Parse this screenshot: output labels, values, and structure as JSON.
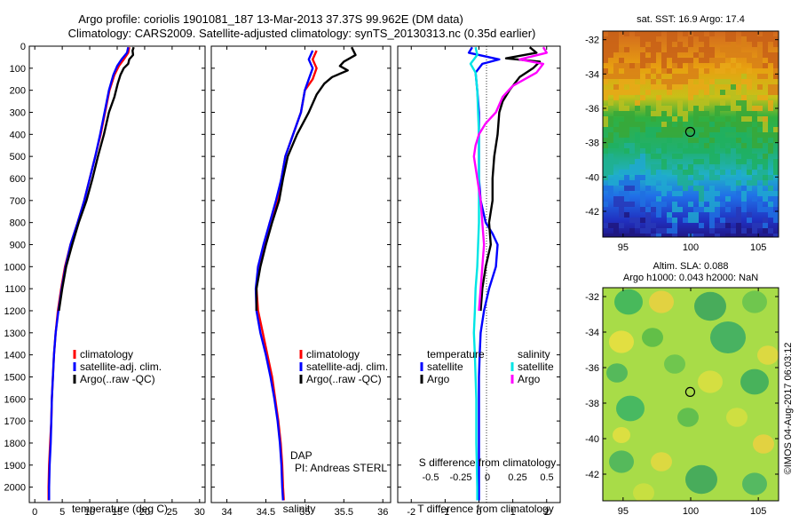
{
  "header": {
    "line1": "Argo profile: coriolis 1901081_187 13-Mar-2013 37.37S 99.962E (DM data)",
    "line2": "Climatology: CARS2009. Satellite-adjusted climatology: synTS_20130313.nc (0.35d earlier)"
  },
  "colors": {
    "climatology": "#ff0000",
    "satellite": "#0000ff",
    "argo": "#000000",
    "argo_s": "#ff00ff",
    "satellite_s": "#00e5e5"
  },
  "chart_data": [
    {
      "type": "line",
      "id": "temperature",
      "xlabel": "temperature (deg C)",
      "xlim": [
        -1,
        31
      ],
      "ylim": [
        0,
        2070
      ],
      "xticks": [
        0,
        5,
        10,
        15,
        20,
        25,
        30
      ],
      "yticks": [
        0,
        100,
        200,
        300,
        400,
        500,
        600,
        700,
        800,
        900,
        1000,
        1100,
        1200,
        1300,
        1400,
        1500,
        1600,
        1700,
        1800,
        1900,
        2000
      ],
      "legend": [
        "climatology",
        "satellite-adj. clim.",
        "Argo(..raw -QC)"
      ],
      "series": [
        {
          "name": "climatology",
          "color": "climatology",
          "points": [
            [
              17.2,
              5
            ],
            [
              17.0,
              30
            ],
            [
              16.2,
              60
            ],
            [
              15.3,
              90
            ],
            [
              14.5,
              130
            ],
            [
              13.6,
              200
            ],
            [
              12.8,
              300
            ],
            [
              12.0,
              400
            ],
            [
              11.0,
              500
            ],
            [
              10.0,
              600
            ],
            [
              9.0,
              700
            ],
            [
              7.8,
              800
            ],
            [
              6.5,
              900
            ],
            [
              5.5,
              1000
            ],
            [
              4.8,
              1100
            ],
            [
              4.2,
              1200
            ],
            [
              3.8,
              1300
            ],
            [
              3.5,
              1400
            ],
            [
              3.3,
              1500
            ],
            [
              3.1,
              1600
            ],
            [
              3.0,
              1700
            ],
            [
              2.8,
              1800
            ],
            [
              2.6,
              1900
            ],
            [
              2.5,
              2000
            ],
            [
              2.5,
              2060
            ]
          ]
        },
        {
          "name": "satellite-adj. clim.",
          "color": "satellite",
          "points": [
            [
              17.0,
              5
            ],
            [
              16.8,
              30
            ],
            [
              15.8,
              60
            ],
            [
              15.0,
              90
            ],
            [
              14.3,
              130
            ],
            [
              13.5,
              200
            ],
            [
              12.7,
              300
            ],
            [
              11.9,
              400
            ],
            [
              11.0,
              500
            ],
            [
              10.0,
              600
            ],
            [
              9.0,
              700
            ],
            [
              7.8,
              800
            ],
            [
              6.5,
              900
            ],
            [
              5.6,
              1000
            ],
            [
              4.9,
              1100
            ],
            [
              4.3,
              1200
            ],
            [
              3.8,
              1300
            ],
            [
              3.5,
              1400
            ],
            [
              3.3,
              1500
            ],
            [
              3.1,
              1600
            ],
            [
              3.0,
              1700
            ],
            [
              2.9,
              1800
            ],
            [
              2.7,
              1900
            ],
            [
              2.6,
              2000
            ],
            [
              2.6,
              2060
            ]
          ]
        },
        {
          "name": "Argo(..raw -QC)",
          "color": "argo",
          "points": [
            [
              18.0,
              5
            ],
            [
              17.8,
              20
            ],
            [
              17.9,
              40
            ],
            [
              17.2,
              60
            ],
            [
              17.0,
              80
            ],
            [
              16.2,
              100
            ],
            [
              15.6,
              130
            ],
            [
              15.1,
              170
            ],
            [
              14.5,
              230
            ],
            [
              13.5,
              300
            ],
            [
              12.6,
              400
            ],
            [
              11.5,
              500
            ],
            [
              10.5,
              600
            ],
            [
              9.4,
              700
            ],
            [
              8.0,
              800
            ],
            [
              6.8,
              900
            ],
            [
              5.7,
              1000
            ],
            [
              5.0,
              1100
            ],
            [
              4.4,
              1200
            ]
          ]
        }
      ]
    },
    {
      "type": "line",
      "id": "salinity",
      "xlabel": "salinity",
      "xlim": [
        33.8,
        36.1
      ],
      "ylim": [
        0,
        2070
      ],
      "xticks": [
        34,
        34.5,
        35,
        35.5,
        36
      ],
      "yticks": [
        0,
        100,
        200,
        300,
        400,
        500,
        600,
        700,
        800,
        900,
        1000,
        1100,
        1200,
        1300,
        1400,
        1500,
        1600,
        1700,
        1800,
        1900,
        2000
      ],
      "legend": [
        "climatology",
        "satellite-adj. clim.",
        "Argo(..raw -QC)"
      ],
      "annotation": [
        "DAP",
        "PI: Andreas STERL"
      ],
      "series": [
        {
          "name": "climatology",
          "color": "climatology",
          "points": [
            [
              35.15,
              20
            ],
            [
              35.1,
              60
            ],
            [
              35.15,
              100
            ],
            [
              35.1,
              150
            ],
            [
              35.0,
              200
            ],
            [
              34.95,
              300
            ],
            [
              34.85,
              400
            ],
            [
              34.75,
              500
            ],
            [
              34.7,
              600
            ],
            [
              34.65,
              700
            ],
            [
              34.55,
              800
            ],
            [
              34.48,
              900
            ],
            [
              34.4,
              1000
            ],
            [
              34.38,
              1100
            ],
            [
              34.4,
              1200
            ],
            [
              34.46,
              1300
            ],
            [
              34.52,
              1400
            ],
            [
              34.58,
              1500
            ],
            [
              34.62,
              1600
            ],
            [
              34.66,
              1700
            ],
            [
              34.69,
              1800
            ],
            [
              34.71,
              1900
            ],
            [
              34.72,
              2000
            ],
            [
              34.73,
              2060
            ]
          ]
        },
        {
          "name": "satellite-adj. clim.",
          "color": "satellite",
          "points": [
            [
              35.1,
              20
            ],
            [
              35.05,
              60
            ],
            [
              35.1,
              100
            ],
            [
              35.05,
              150
            ],
            [
              35.0,
              200
            ],
            [
              34.95,
              300
            ],
            [
              34.85,
              400
            ],
            [
              34.75,
              500
            ],
            [
              34.7,
              600
            ],
            [
              34.63,
              700
            ],
            [
              34.55,
              800
            ],
            [
              34.47,
              900
            ],
            [
              34.4,
              1000
            ],
            [
              34.37,
              1100
            ],
            [
              34.38,
              1200
            ],
            [
              34.43,
              1300
            ],
            [
              34.5,
              1400
            ],
            [
              34.56,
              1500
            ],
            [
              34.61,
              1600
            ],
            [
              34.65,
              1700
            ],
            [
              34.68,
              1800
            ],
            [
              34.7,
              1900
            ],
            [
              34.71,
              2000
            ],
            [
              34.72,
              2060
            ]
          ]
        },
        {
          "name": "Argo(..raw -QC)",
          "color": "argo",
          "points": [
            [
              35.6,
              5
            ],
            [
              35.65,
              40
            ],
            [
              35.5,
              70
            ],
            [
              35.45,
              90
            ],
            [
              35.55,
              110
            ],
            [
              35.35,
              140
            ],
            [
              35.25,
              170
            ],
            [
              35.15,
              220
            ],
            [
              35.05,
              300
            ],
            [
              34.9,
              400
            ],
            [
              34.78,
              500
            ],
            [
              34.72,
              600
            ],
            [
              34.67,
              700
            ],
            [
              34.58,
              800
            ],
            [
              34.5,
              900
            ],
            [
              34.43,
              1000
            ],
            [
              34.38,
              1100
            ],
            [
              34.38,
              1200
            ]
          ]
        }
      ]
    },
    {
      "type": "line",
      "id": "difference",
      "xlabel_bottom": "T difference from climatology",
      "xlabel_top": "S difference from climatology",
      "xlim": [
        -2.4,
        2.4
      ],
      "ylim": [
        0,
        2070
      ],
      "xticks": [
        -2,
        -1,
        0,
        1,
        2
      ],
      "xticks_top": [
        "-0.5",
        "-0.25",
        "0",
        "0.25",
        "0.5"
      ],
      "yticks": [
        0,
        100,
        200,
        300,
        400,
        500,
        600,
        700,
        800,
        900,
        1000,
        1100,
        1200,
        1300,
        1400,
        1500,
        1600,
        1700,
        1800,
        1900,
        2000
      ],
      "legend_title_t": "temperature",
      "legend_title_s": "salinity",
      "legend_t": [
        "satellite",
        "Argo"
      ],
      "legend_s": [
        "satellite",
        "Argo"
      ],
      "series": [
        {
          "name": "satellite",
          "group": "temperature",
          "color": "satellite",
          "points": [
            [
              -0.2,
              5
            ],
            [
              -0.3,
              30
            ],
            [
              0.6,
              60
            ],
            [
              0.1,
              80
            ],
            [
              -0.1,
              120
            ],
            [
              -0.05,
              200
            ],
            [
              0.0,
              300
            ],
            [
              0.0,
              400
            ],
            [
              0.0,
              500
            ],
            [
              0.0,
              600
            ],
            [
              0.05,
              700
            ],
            [
              0.2,
              800
            ],
            [
              0.4,
              850
            ],
            [
              0.55,
              900
            ],
            [
              0.5,
              1000
            ],
            [
              0.3,
              1100
            ],
            [
              0.15,
              1200
            ],
            [
              0.05,
              1300
            ],
            [
              0.02,
              1400
            ],
            [
              0.0,
              1500
            ],
            [
              0.0,
              1700
            ],
            [
              0.0,
              1900
            ],
            [
              0.0,
              2060
            ]
          ]
        },
        {
          "name": "Argo",
          "group": "temperature",
          "color": "argo",
          "points": [
            [
              1.5,
              5
            ],
            [
              1.7,
              30
            ],
            [
              0.8,
              55
            ],
            [
              1.8,
              70
            ],
            [
              1.6,
              100
            ],
            [
              1.2,
              140
            ],
            [
              0.9,
              200
            ],
            [
              0.7,
              250
            ],
            [
              0.6,
              300
            ],
            [
              0.55,
              400
            ],
            [
              0.45,
              500
            ],
            [
              0.4,
              600
            ],
            [
              0.4,
              700
            ],
            [
              0.3,
              800
            ],
            [
              0.35,
              900
            ],
            [
              0.2,
              1000
            ],
            [
              0.1,
              1100
            ],
            [
              0.05,
              1200
            ]
          ]
        },
        {
          "name": "satellite",
          "group": "salinity",
          "color": "satellite_s",
          "points": [
            [
              -0.1,
              5
            ],
            [
              -0.05,
              40
            ],
            [
              -0.25,
              80
            ],
            [
              -0.1,
              120
            ],
            [
              -0.05,
              200
            ],
            [
              0.0,
              400
            ],
            [
              0.0,
              600
            ],
            [
              0.0,
              800
            ],
            [
              -0.05,
              1000
            ],
            [
              -0.1,
              1100
            ],
            [
              -0.12,
              1200
            ],
            [
              -0.15,
              1300
            ],
            [
              -0.12,
              1400
            ],
            [
              -0.1,
              1500
            ],
            [
              -0.08,
              1600
            ],
            [
              -0.08,
              1800
            ],
            [
              -0.05,
              2000
            ],
            [
              -0.05,
              2060
            ]
          ]
        },
        {
          "name": "Argo",
          "group": "salinity",
          "color": "argo_s",
          "points": [
            [
              1.9,
              5
            ],
            [
              2.0,
              30
            ],
            [
              1.2,
              60
            ],
            [
              1.9,
              80
            ],
            [
              1.7,
              120
            ],
            [
              1.0,
              180
            ],
            [
              0.7,
              230
            ],
            [
              0.5,
              300
            ],
            [
              0.2,
              350
            ],
            [
              0.0,
              400
            ],
            [
              -0.1,
              450
            ],
            [
              -0.15,
              500
            ],
            [
              -0.1,
              550
            ],
            [
              -0.05,
              600
            ],
            [
              0.05,
              700
            ],
            [
              0.1,
              800
            ],
            [
              0.15,
              900
            ],
            [
              0.1,
              1000
            ],
            [
              0.05,
              1100
            ],
            [
              0.0,
              1200
            ]
          ]
        }
      ]
    },
    {
      "type": "heatmap",
      "id": "sst_map",
      "title": "sat. SST: 16.9 Argo: 17.4",
      "xlim": [
        93.5,
        106.5
      ],
      "ylim": [
        -43.5,
        -31.5
      ],
      "xticks": [
        95,
        100,
        105
      ],
      "yticks": [
        -32,
        -34,
        -36,
        -38,
        -40,
        -42
      ],
      "marker": [
        99.962,
        -37.37
      ]
    },
    {
      "type": "heatmap",
      "id": "sla_map",
      "title_line1": "Altim. SLA: 0.088",
      "title_line2": "Argo h1000: 0.043 h2000: NaN",
      "xlim": [
        93.5,
        106.5
      ],
      "ylim": [
        -43.5,
        -31.5
      ],
      "xticks": [
        95,
        100,
        105
      ],
      "yticks": [
        -32,
        -34,
        -36,
        -38,
        -40,
        -42
      ],
      "marker": [
        99.962,
        -37.37
      ]
    }
  ],
  "footer": {
    "credit": "©IMOS 04-Aug-2017 06:03:12"
  }
}
